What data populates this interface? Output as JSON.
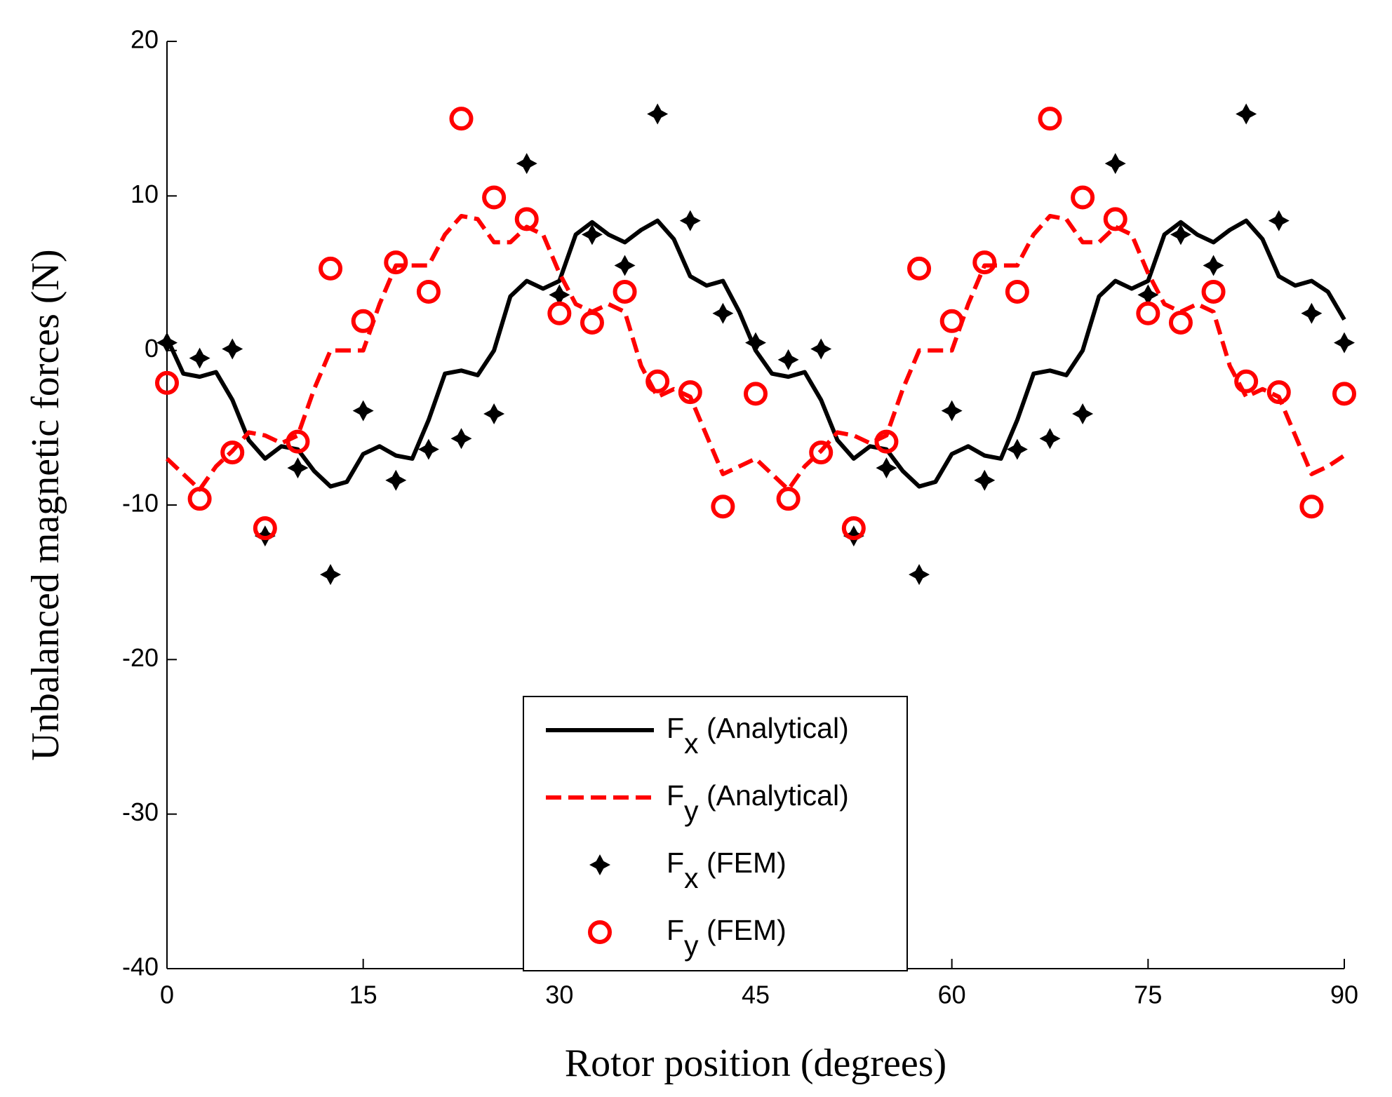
{
  "chart_data": {
    "type": "line",
    "xlabel": "Rotor position (degrees)",
    "ylabel": "Unbalanced magnetic forces (N)",
    "xlim": [
      0,
      90
    ],
    "xticks": [
      0,
      15,
      30,
      45,
      60,
      75,
      90
    ],
    "ylim": [
      -40,
      20
    ],
    "yticks": [
      -40,
      -30,
      -20,
      -10,
      0,
      10,
      20
    ],
    "legend": "lower center",
    "series": [
      {
        "name": "Fx (Analytical)",
        "color": "#000000",
        "style": "solid",
        "x": [
          0,
          1.25,
          2.5,
          3.75,
          5,
          6.25,
          7.5,
          8.75,
          10,
          11.25,
          12.5,
          13.75,
          15,
          16.25,
          17.5,
          18.75,
          20,
          21.25,
          22.5,
          23.75,
          25,
          26.25,
          27.5,
          28.75,
          30,
          31.25,
          32.5,
          33.75,
          35,
          36.25,
          37.5,
          38.75,
          40,
          41.25,
          42.5,
          43.75,
          45,
          46.25,
          47.5,
          48.75,
          50,
          51.25,
          52.5,
          53.75,
          55,
          56.25,
          57.5,
          58.75,
          60,
          61.25,
          62.5,
          63.75,
          65,
          66.25,
          67.5,
          68.75,
          70,
          71.25,
          72.5,
          73.75,
          75,
          76.25,
          77.5,
          78.75,
          80,
          81.25,
          82.5,
          83.75,
          85,
          86.25,
          87.5,
          88.75,
          90
        ],
        "values": [
          0.8,
          -1.5,
          -1.7,
          -1.4,
          -3.2,
          -5.8,
          -7,
          -6.2,
          -6.4,
          -7.8,
          -8.8,
          -8.5,
          -6.7,
          -6.2,
          -6.8,
          -7,
          -4.5,
          -1.5,
          -1.3,
          -1.6,
          0,
          3.5,
          4.5,
          4,
          4.5,
          7.5,
          8.3,
          7.5,
          7,
          7.8,
          8.4,
          7.2,
          4.8,
          4.2,
          4.5,
          2.5,
          0,
          -1.5,
          -1.7,
          -1.4,
          -3.2,
          -5.8,
          -7,
          -6.2,
          -6.4,
          -7.8,
          -8.8,
          -8.5,
          -6.7,
          -6.2,
          -6.8,
          -7,
          -4.5,
          -1.5,
          -1.3,
          -1.6,
          0,
          3.5,
          4.5,
          4,
          4.5,
          7.5,
          8.3,
          7.5,
          7,
          7.8,
          8.4,
          7.2,
          4.8,
          4.2,
          4.5,
          3.8,
          2
        ]
      },
      {
        "name": "Fy (Analytical)",
        "color": "#ff0000",
        "style": "dashed",
        "x": [
          0,
          1.25,
          2.5,
          3.75,
          5,
          6.25,
          7.5,
          8.75,
          10,
          11.25,
          12.5,
          13.75,
          15,
          16.25,
          17.5,
          18.75,
          20,
          21.25,
          22.5,
          23.75,
          25,
          26.25,
          27.5,
          28.75,
          30,
          31.25,
          32.5,
          33.75,
          35,
          36.25,
          37.5,
          38.75,
          40,
          41.25,
          42.5,
          43.75,
          45,
          46.25,
          47.5,
          48.75,
          50,
          51.25,
          52.5,
          53.75,
          55,
          56.25,
          57.5,
          58.75,
          60,
          61.25,
          62.5,
          63.75,
          65,
          66.25,
          67.5,
          68.75,
          70,
          71.25,
          72.5,
          73.75,
          75,
          76.25,
          77.5,
          78.75,
          80,
          81.25,
          82.5,
          83.75,
          85,
          86.25,
          87.5,
          88.75,
          90
        ],
        "values": [
          -7,
          -8,
          -9,
          -7.5,
          -6.5,
          -5.3,
          -5.5,
          -6,
          -5.5,
          -2.5,
          0,
          0,
          0,
          3,
          5.5,
          5.5,
          5.5,
          7.5,
          8.7,
          8.5,
          7,
          7,
          8,
          7.5,
          5,
          3,
          2.5,
          3,
          2.5,
          -1,
          -3,
          -2.5,
          -3,
          -5.5,
          -8,
          -7.5,
          -7,
          -8,
          -9,
          -7.5,
          -6.5,
          -5.3,
          -5.5,
          -6,
          -5.5,
          -2.5,
          0,
          0,
          0,
          3,
          5.5,
          5.5,
          5.5,
          7.5,
          8.7,
          8.5,
          7,
          7,
          8,
          7.5,
          5,
          3,
          2.5,
          3,
          2.5,
          -1,
          -3,
          -2.5,
          -3,
          -5.5,
          -8,
          -7.5,
          -6.8
        ]
      },
      {
        "name": "Fx (FEM)",
        "color": "#000000",
        "style": "star",
        "x": [
          0,
          2.5,
          5,
          7.5,
          10,
          12.5,
          15,
          17.5,
          20,
          22.5,
          25,
          27.5,
          30,
          32.5,
          35,
          37.5,
          40,
          42.5,
          45,
          47.5,
          50,
          52.5,
          55,
          57.5,
          60,
          62.5,
          65,
          67.5,
          70,
          72.5,
          75,
          77.5,
          80,
          82.5,
          85,
          87.5,
          90
        ],
        "values": [
          0.5,
          -0.5,
          0.1,
          -12,
          -7.6,
          -14.5,
          -3.9,
          -8.4,
          -6.4,
          -5.7,
          -4.1,
          12.1,
          3.6,
          7.5,
          5.5,
          15.3,
          8.4,
          2.4,
          0.5,
          -0.6,
          0.1,
          -12,
          -7.6,
          -14.5,
          -3.9,
          -8.4,
          -6.4,
          -5.7,
          -4.1,
          12.1,
          3.6,
          7.5,
          5.5,
          15.3,
          8.4,
          2.4,
          0.5
        ]
      },
      {
        "name": "Fy (FEM)",
        "color": "#ff0000",
        "style": "circle",
        "x": [
          0,
          2.5,
          5,
          7.5,
          10,
          12.5,
          15,
          17.5,
          20,
          22.5,
          25,
          27.5,
          30,
          32.5,
          35,
          37.5,
          40,
          42.5,
          45,
          47.5,
          50,
          52.5,
          55,
          57.5,
          60,
          62.5,
          65,
          67.5,
          70,
          72.5,
          75,
          77.5,
          80,
          82.5,
          85,
          87.5,
          90
        ],
        "values": [
          -2.1,
          -9.6,
          -6.6,
          -11.5,
          -5.9,
          5.3,
          1.9,
          5.7,
          3.8,
          15,
          9.9,
          8.5,
          2.4,
          1.8,
          3.8,
          -2,
          -2.7,
          -10.1,
          -2.8,
          -9.6,
          -6.6,
          -11.5,
          -5.9,
          5.3,
          1.9,
          5.7,
          3.8,
          15,
          9.9,
          8.5,
          2.4,
          1.8,
          3.8,
          -2,
          -2.7,
          -10.1,
          -2.8
        ]
      }
    ]
  }
}
